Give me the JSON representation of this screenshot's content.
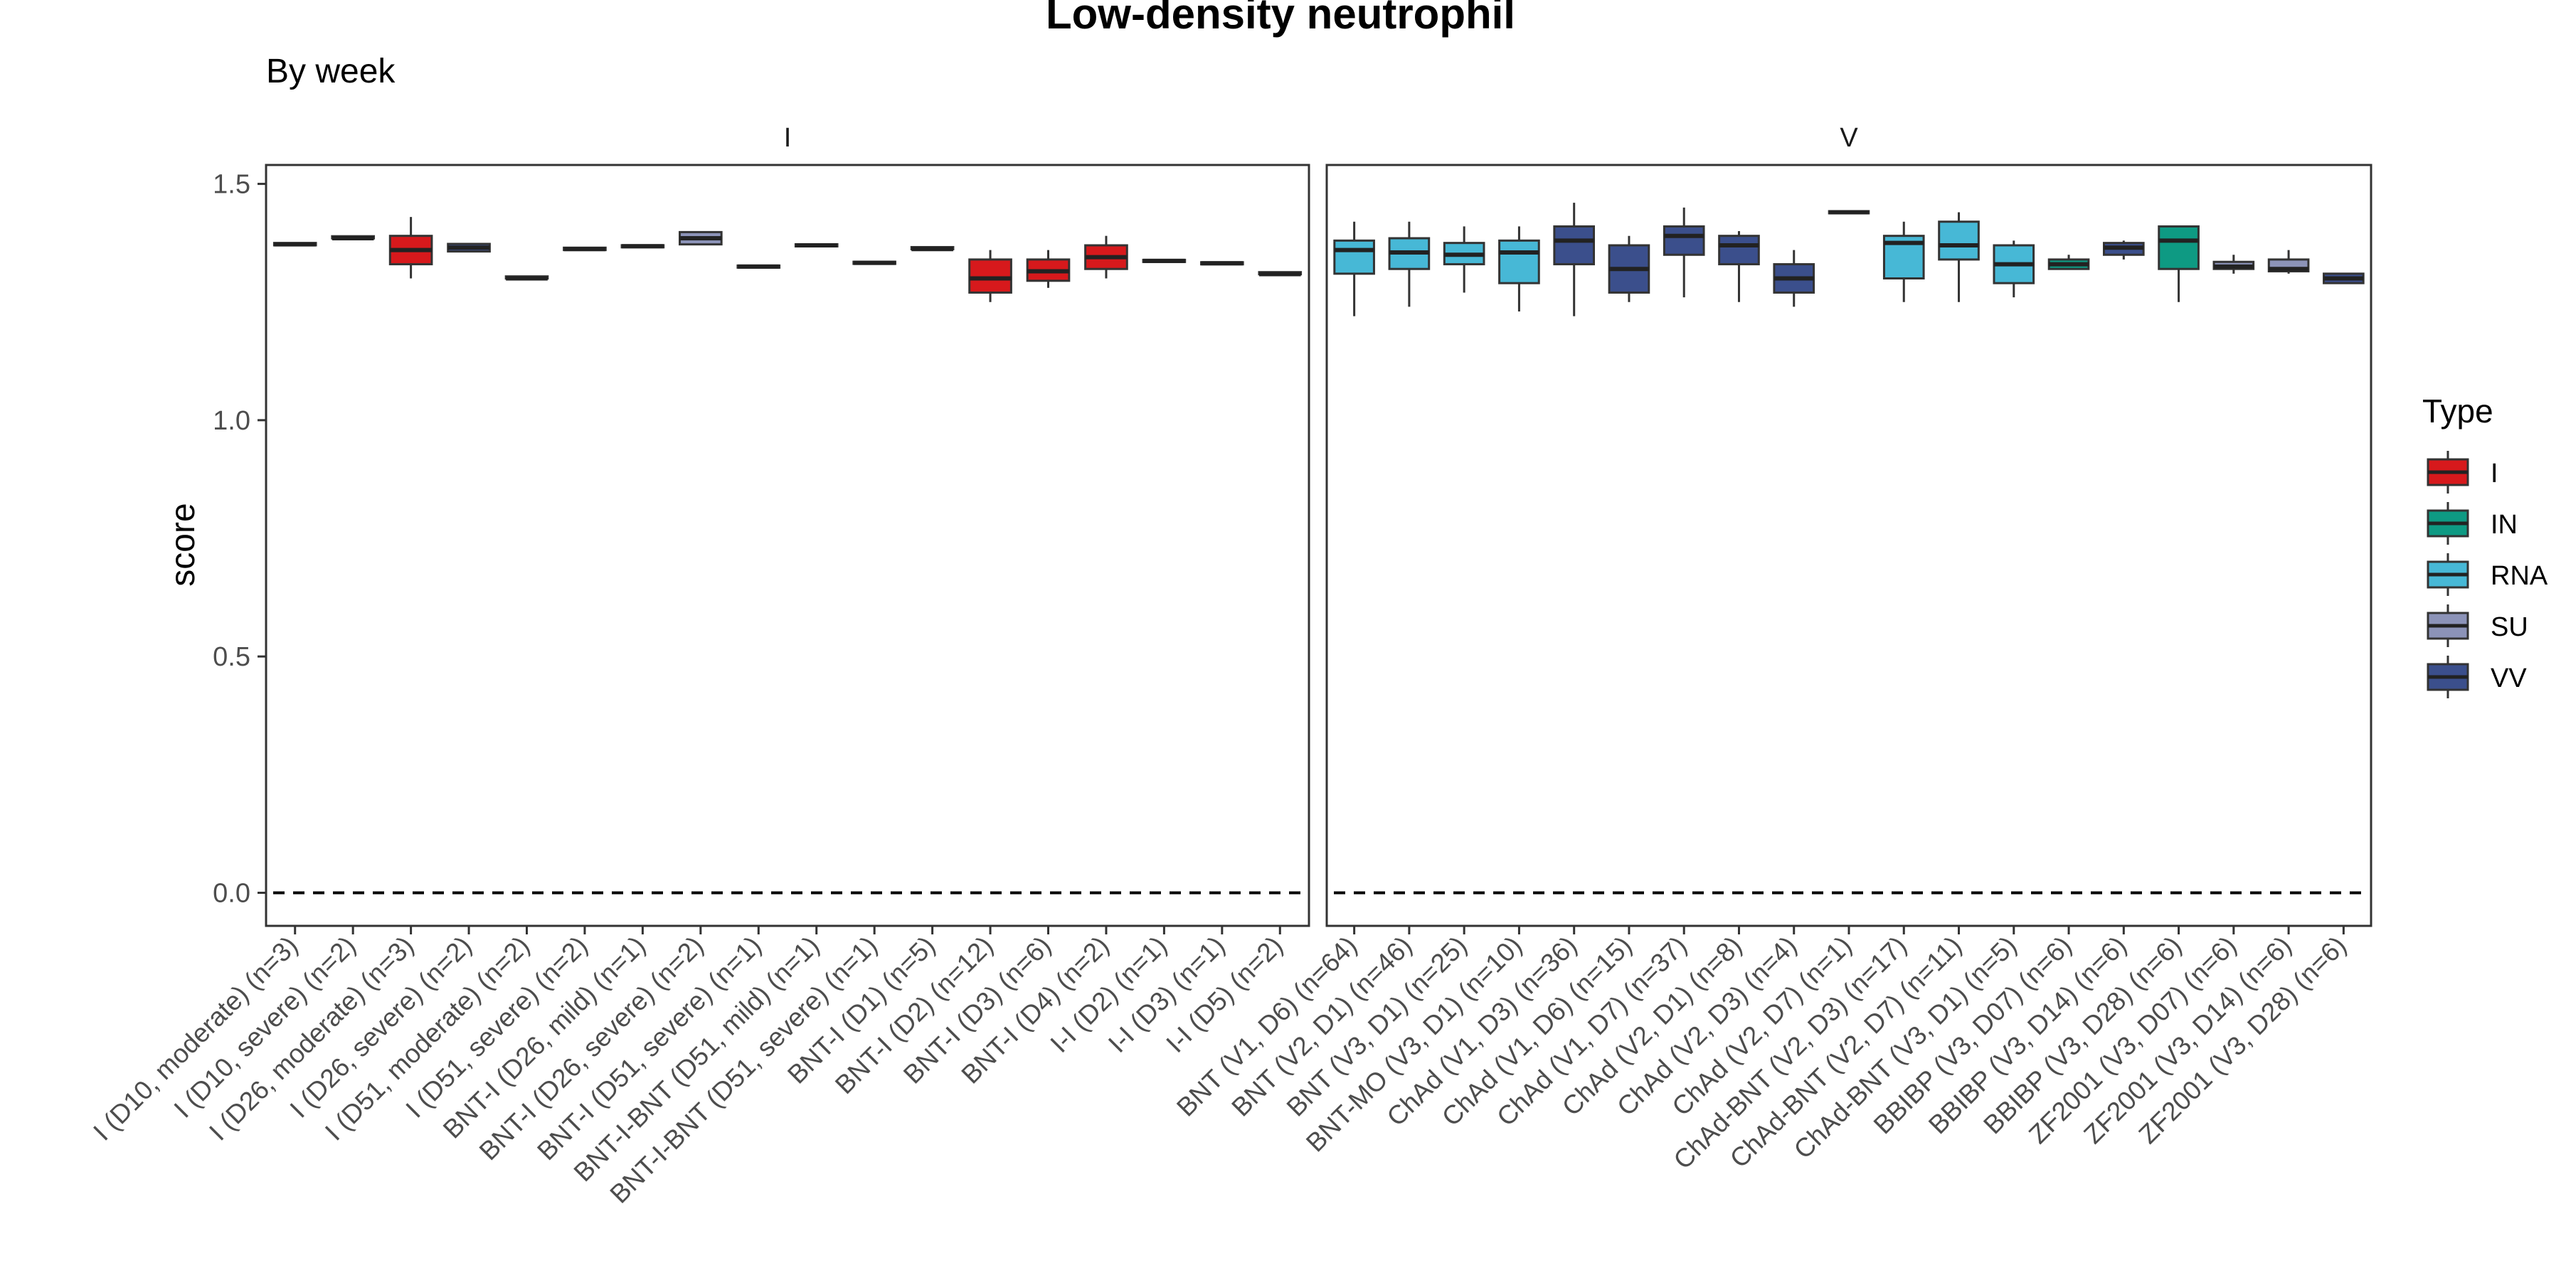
{
  "chart_data": {
    "type": "boxplot",
    "title": "Low-density neutrophil",
    "subtitle": "By week",
    "ylabel": "score",
    "xlabel": "",
    "ylim": [
      -0.07,
      1.54
    ],
    "yticks": [
      0.0,
      0.5,
      1.0,
      1.5
    ],
    "ytick_labels": [
      "0.0",
      "0.5",
      "1.0",
      "1.5"
    ],
    "reference_line": {
      "y": 0.0,
      "style": "dashed"
    },
    "grid": false,
    "legend": {
      "title": "Type",
      "position": "right",
      "entries": [
        {
          "label": "I",
          "color": "#D7191C"
        },
        {
          "label": "IN",
          "color": "#0E9A83"
        },
        {
          "label": "RNA",
          "color": "#47B8D6"
        },
        {
          "label": "SU",
          "color": "#8C93B8"
        },
        {
          "label": "VV",
          "color": "#3B4F8C"
        }
      ]
    },
    "colors": {
      "I": "#D7191C",
      "IN": "#0E9A83",
      "RNA": "#47B8D6",
      "SU": "#8C93B8",
      "VV": "#3B4F8C"
    },
    "panels": [
      {
        "strip": "I",
        "categories": [
          {
            "label": "I (D10, moderate) (n=3)",
            "type": "VV",
            "min": 1.37,
            "q1": 1.37,
            "median": 1.372,
            "q3": 1.375,
            "max": 1.375
          },
          {
            "label": "I (D10, severe) (n=2)",
            "type": "VV",
            "min": 1.383,
            "q1": 1.383,
            "median": 1.385,
            "q3": 1.387,
            "max": 1.387
          },
          {
            "label": "I (D26, moderate) (n=3)",
            "type": "I",
            "min": 1.3,
            "q1": 1.33,
            "median": 1.36,
            "q3": 1.39,
            "max": 1.43
          },
          {
            "label": "I (D26, severe) (n=2)",
            "type": "VV",
            "min": 1.355,
            "q1": 1.357,
            "median": 1.365,
            "q3": 1.373,
            "max": 1.375
          },
          {
            "label": "I (D51, moderate) (n=2)",
            "type": "VV",
            "min": 1.298,
            "q1": 1.298,
            "median": 1.3,
            "q3": 1.302,
            "max": 1.302
          },
          {
            "label": "I (D51, severe) (n=2)",
            "type": "VV",
            "min": 1.36,
            "q1": 1.36,
            "median": 1.362,
            "q3": 1.365,
            "max": 1.365
          },
          {
            "label": "BNT-I (D26, mild) (n=1)",
            "type": "VV",
            "min": 1.368,
            "q1": 1.368,
            "median": 1.368,
            "q3": 1.368,
            "max": 1.368
          },
          {
            "label": "BNT-I (D26, severe) (n=2)",
            "type": "SU",
            "min": 1.37,
            "q1": 1.372,
            "median": 1.385,
            "q3": 1.398,
            "max": 1.4
          },
          {
            "label": "BNT-I (D51, severe) (n=1)",
            "type": "VV",
            "min": 1.325,
            "q1": 1.325,
            "median": 1.325,
            "q3": 1.325,
            "max": 1.325
          },
          {
            "label": "BNT-I-BNT (D51, mild) (n=1)",
            "type": "VV",
            "min": 1.37,
            "q1": 1.37,
            "median": 1.37,
            "q3": 1.37,
            "max": 1.37
          },
          {
            "label": "BNT-I-BNT (D51, severe) (n=1)",
            "type": "VV",
            "min": 1.333,
            "q1": 1.333,
            "median": 1.333,
            "q3": 1.333,
            "max": 1.333
          },
          {
            "label": "BNT-I (D1) (n=5)",
            "type": "VV",
            "min": 1.36,
            "q1": 1.36,
            "median": 1.362,
            "q3": 1.364,
            "max": 1.364
          },
          {
            "label": "BNT-I (D2) (n=12)",
            "type": "I",
            "min": 1.25,
            "q1": 1.27,
            "median": 1.3,
            "q3": 1.34,
            "max": 1.36
          },
          {
            "label": "BNT-I (D3) (n=6)",
            "type": "I",
            "min": 1.28,
            "q1": 1.295,
            "median": 1.315,
            "q3": 1.34,
            "max": 1.36
          },
          {
            "label": "BNT-I (D4) (n=2)",
            "type": "I",
            "min": 1.3,
            "q1": 1.32,
            "median": 1.345,
            "q3": 1.37,
            "max": 1.39
          },
          {
            "label": "I-I (D2) (n=1)",
            "type": "VV",
            "min": 1.337,
            "q1": 1.337,
            "median": 1.337,
            "q3": 1.337,
            "max": 1.337
          },
          {
            "label": "I-I (D3) (n=1)",
            "type": "VV",
            "min": 1.332,
            "q1": 1.332,
            "median": 1.332,
            "q3": 1.332,
            "max": 1.332
          },
          {
            "label": "I-I (D5) (n=2)",
            "type": "VV",
            "min": 1.307,
            "q1": 1.307,
            "median": 1.309,
            "q3": 1.311,
            "max": 1.311
          }
        ]
      },
      {
        "strip": "V",
        "categories": [
          {
            "label": "BNT (V1, D6) (n=64)",
            "type": "RNA",
            "min": 1.22,
            "q1": 1.31,
            "median": 1.36,
            "q3": 1.38,
            "max": 1.42
          },
          {
            "label": "BNT (V2, D1) (n=46)",
            "type": "RNA",
            "min": 1.24,
            "q1": 1.32,
            "median": 1.355,
            "q3": 1.385,
            "max": 1.42
          },
          {
            "label": "BNT (V3, D1) (n=25)",
            "type": "RNA",
            "min": 1.27,
            "q1": 1.33,
            "median": 1.35,
            "q3": 1.375,
            "max": 1.41
          },
          {
            "label": "BNT-MO (V3, D1) (n=10)",
            "type": "RNA",
            "min": 1.23,
            "q1": 1.29,
            "median": 1.355,
            "q3": 1.38,
            "max": 1.41
          },
          {
            "label": "ChAd (V1, D3) (n=36)",
            "type": "VV",
            "min": 1.22,
            "q1": 1.33,
            "median": 1.38,
            "q3": 1.41,
            "max": 1.46
          },
          {
            "label": "ChAd (V1, D6) (n=15)",
            "type": "VV",
            "min": 1.25,
            "q1": 1.27,
            "median": 1.32,
            "q3": 1.37,
            "max": 1.39
          },
          {
            "label": "ChAd (V1, D7) (n=37)",
            "type": "VV",
            "min": 1.26,
            "q1": 1.35,
            "median": 1.39,
            "q3": 1.41,
            "max": 1.45
          },
          {
            "label": "ChAd (V2, D1) (n=8)",
            "type": "VV",
            "min": 1.25,
            "q1": 1.33,
            "median": 1.37,
            "q3": 1.39,
            "max": 1.4
          },
          {
            "label": "ChAd (V2, D3) (n=4)",
            "type": "VV",
            "min": 1.24,
            "q1": 1.27,
            "median": 1.3,
            "q3": 1.33,
            "max": 1.36
          },
          {
            "label": "ChAd (V2, D7) (n=1)",
            "type": "VV",
            "min": 1.44,
            "q1": 1.44,
            "median": 1.44,
            "q3": 1.44,
            "max": 1.44
          },
          {
            "label": "ChAd-BNT (V2, D3) (n=17)",
            "type": "RNA",
            "min": 1.25,
            "q1": 1.3,
            "median": 1.375,
            "q3": 1.39,
            "max": 1.42
          },
          {
            "label": "ChAd-BNT (V2, D7) (n=11)",
            "type": "RNA",
            "min": 1.25,
            "q1": 1.34,
            "median": 1.37,
            "q3": 1.42,
            "max": 1.44
          },
          {
            "label": "ChAd-BNT (V3, D1) (n=5)",
            "type": "RNA",
            "min": 1.26,
            "q1": 1.29,
            "median": 1.33,
            "q3": 1.37,
            "max": 1.38
          },
          {
            "label": "BBIBP (V3, D07) (n=6)",
            "type": "IN",
            "min": 1.32,
            "q1": 1.32,
            "median": 1.33,
            "q3": 1.34,
            "max": 1.35
          },
          {
            "label": "BBIBP (V3, D14) (n=6)",
            "type": "VV",
            "min": 1.34,
            "q1": 1.35,
            "median": 1.365,
            "q3": 1.375,
            "max": 1.38
          },
          {
            "label": "BBIBP (V3, D28) (n=6)",
            "type": "IN",
            "min": 1.25,
            "q1": 1.32,
            "median": 1.38,
            "q3": 1.41,
            "max": 1.41
          },
          {
            "label": "ZF2001 (V3, D07) (n=6)",
            "type": "SU",
            "min": 1.31,
            "q1": 1.32,
            "median": 1.325,
            "q3": 1.335,
            "max": 1.35
          },
          {
            "label": "ZF2001 (V3, D14) (n=6)",
            "type": "SU",
            "min": 1.31,
            "q1": 1.315,
            "median": 1.32,
            "q3": 1.34,
            "max": 1.36
          },
          {
            "label": "ZF2001 (V3, D28) (n=6)",
            "type": "VV",
            "min": 1.29,
            "q1": 1.29,
            "median": 1.3,
            "q3": 1.31,
            "max": 1.31
          }
        ]
      }
    ]
  }
}
